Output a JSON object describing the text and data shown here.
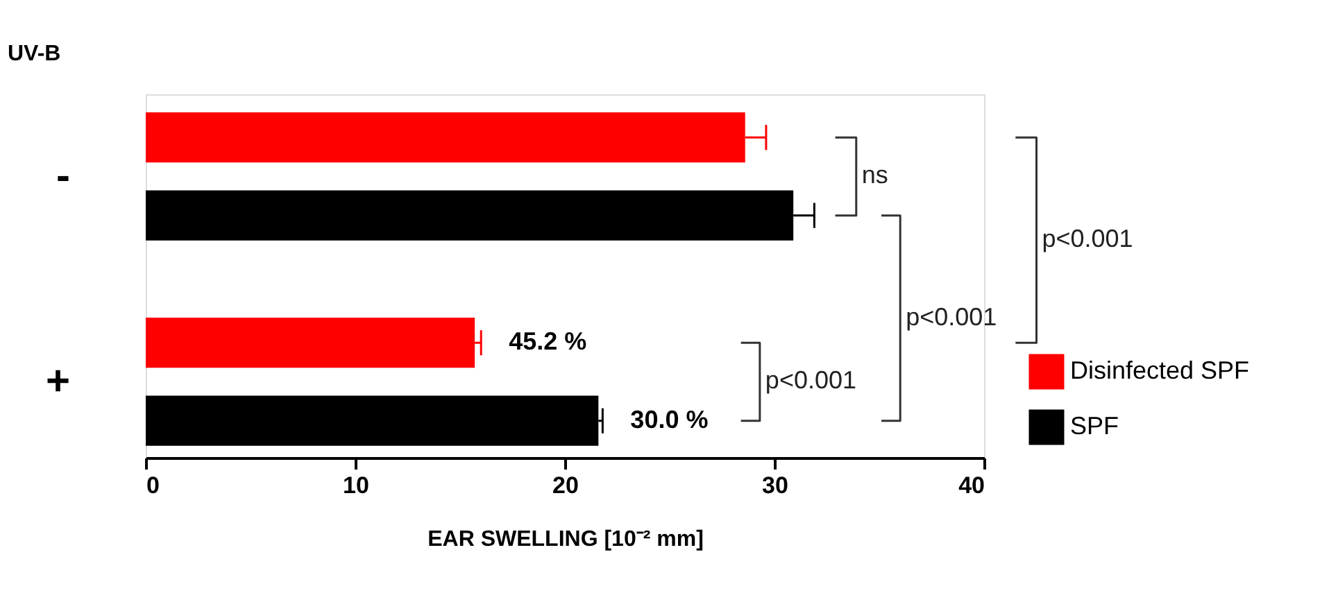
{
  "chart_data": {
    "type": "bar",
    "orientation": "horizontal",
    "categories": [
      "-",
      "+"
    ],
    "ylabel": "UV-B",
    "xlabel": "EAR SWELLING [10⁻² mm]",
    "series": [
      {
        "name": "Disinfected SPF",
        "color": "#ff0000",
        "values": [
          28.6,
          15.7
        ],
        "errors": [
          [
            28.6,
            29.6
          ],
          [
            15.7,
            16.0
          ]
        ]
      },
      {
        "name": "SPF",
        "color": "#000000",
        "values": [
          30.9,
          21.6
        ],
        "errors": [
          [
            30.9,
            31.9
          ],
          [
            21.6,
            21.8
          ]
        ]
      }
    ],
    "xlim": [
      0,
      40
    ],
    "xticks": [
      0,
      10,
      20,
      30,
      40
    ],
    "grid": false,
    "legend": "bottom right",
    "annotations": [
      "45.2 %",
      "30.0 %",
      "ns",
      "p<0.001",
      "p<0.001",
      "p<0.001"
    ]
  }
}
